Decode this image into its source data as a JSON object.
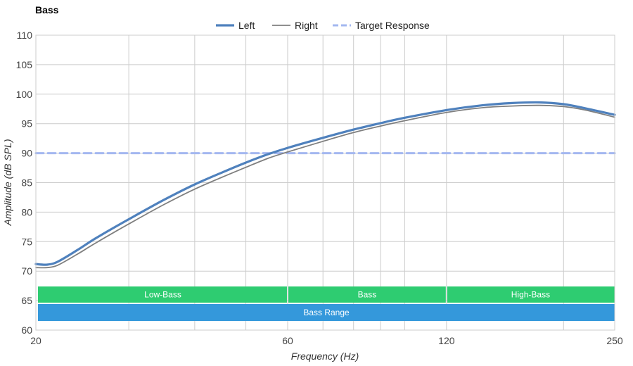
{
  "chart_data": {
    "type": "line",
    "title": "Bass",
    "xlabel": "Frequency (Hz)",
    "ylabel": "Amplitude (dB SPL)",
    "xscale": "log",
    "xlim": [
      20,
      250
    ],
    "ylim": [
      60,
      110
    ],
    "xticks": [
      20,
      60,
      120,
      250
    ],
    "yticks": [
      60,
      65,
      70,
      75,
      80,
      85,
      90,
      95,
      100,
      105,
      110
    ],
    "minor_x_gridlines": [
      30,
      40,
      50,
      70,
      80,
      90,
      100,
      200
    ],
    "grid": true,
    "legend_position": "top-center",
    "series": [
      {
        "name": "Left",
        "color": "#4f81bd",
        "style": "solid-thick",
        "x": [
          20,
          21,
          22,
          24,
          26,
          30,
          35,
          40,
          45,
          50,
          55,
          60,
          70,
          80,
          90,
          100,
          120,
          140,
          160,
          180,
          200,
          220,
          250
        ],
        "y": [
          71.2,
          71.1,
          71.6,
          73.6,
          75.6,
          78.8,
          82.1,
          84.7,
          86.7,
          88.4,
          89.8,
          90.9,
          92.6,
          94.0,
          95.1,
          96.0,
          97.3,
          98.1,
          98.5,
          98.6,
          98.3,
          97.6,
          96.5
        ]
      },
      {
        "name": "Right",
        "color": "#7f7f7f",
        "style": "solid-thin",
        "x": [
          20,
          21,
          22,
          24,
          26,
          30,
          35,
          40,
          45,
          50,
          55,
          60,
          70,
          80,
          90,
          100,
          120,
          140,
          160,
          180,
          200,
          220,
          250
        ],
        "y": [
          70.6,
          70.6,
          71.0,
          72.9,
          74.8,
          78.0,
          81.3,
          83.9,
          85.9,
          87.6,
          89.1,
          90.2,
          92.0,
          93.5,
          94.6,
          95.5,
          96.9,
          97.7,
          98.0,
          98.1,
          97.9,
          97.3,
          96.1
        ]
      },
      {
        "name": "Target Response",
        "color": "#a4b8f0",
        "style": "dashed",
        "x": [
          20,
          250
        ],
        "y": [
          90,
          90
        ]
      }
    ],
    "bands": [
      {
        "label": "Low-Bass",
        "from": 20,
        "to": 60,
        "color": "#2ecc71",
        "row": 0
      },
      {
        "label": "Bass",
        "from": 60,
        "to": 120,
        "color": "#2ecc71",
        "row": 0
      },
      {
        "label": "High-Bass",
        "from": 120,
        "to": 250,
        "color": "#2ecc71",
        "row": 0
      },
      {
        "label": "Bass Range",
        "from": 20,
        "to": 250,
        "color": "#3498db",
        "row": 1
      }
    ]
  }
}
